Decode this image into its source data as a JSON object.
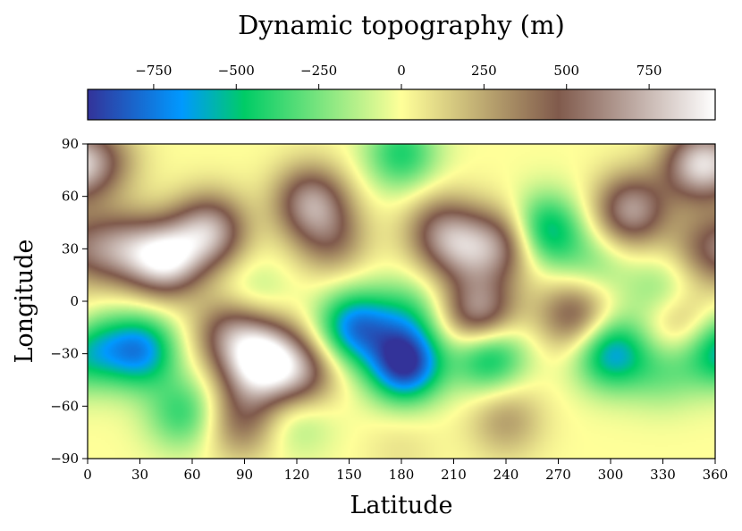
{
  "chart_data": {
    "type": "heatmap",
    "title": "",
    "xlabel": "Latitude",
    "ylabel": "Longitude",
    "xlim": [
      0,
      360
    ],
    "ylim": [
      -90,
      90
    ],
    "x_ticks": [
      "0",
      "30",
      "60",
      "90",
      "120",
      "150",
      "180",
      "210",
      "240",
      "270",
      "300",
      "330",
      "360"
    ],
    "y_ticks": [
      "90",
      "60",
      "30",
      "0",
      "−30",
      "−60",
      "−90"
    ],
    "colorbar": {
      "label": "Dynamic topography (m)",
      "orientation": "horizontal",
      "position": "top",
      "range": [
        -950,
        950
      ],
      "ticks": [
        "−750",
        "−500",
        "−250",
        "0",
        "250",
        "500",
        "750"
      ],
      "colormap_stops": [
        {
          "value": -950,
          "color": "#333399"
        },
        {
          "value": -665,
          "color": "#0099ff"
        },
        {
          "value": -475,
          "color": "#00cc66"
        },
        {
          "value": 0,
          "color": "#ffff99"
        },
        {
          "value": 475,
          "color": "#805a4c"
        },
        {
          "value": 950,
          "color": "#ffffff"
        }
      ]
    },
    "field_features": [
      {
        "lon": 180,
        "lat": 84,
        "value": -420,
        "note": "low band near north pole"
      },
      {
        "lon": 180,
        "lat": -84,
        "value": 80,
        "note": "pale band near south pole"
      },
      {
        "lon": 45,
        "lat": 24,
        "value": 850
      },
      {
        "lon": 70,
        "lat": 40,
        "value": 700
      },
      {
        "lon": 20,
        "lat": 30,
        "value": 500
      },
      {
        "lon": 128,
        "lat": 57,
        "value": 620
      },
      {
        "lon": 140,
        "lat": 35,
        "value": 350
      },
      {
        "lon": 225,
        "lat": -8,
        "value": 720
      },
      {
        "lon": 218,
        "lat": 28,
        "value": 430
      },
      {
        "lon": 203,
        "lat": 40,
        "value": 480
      },
      {
        "lon": 240,
        "lat": 33,
        "value": 500
      },
      {
        "lon": 312,
        "lat": 52,
        "value": 660
      },
      {
        "lon": 350,
        "lat": 78,
        "value": 720
      },
      {
        "lon": 10,
        "lat": 80,
        "value": 300
      },
      {
        "lon": 355,
        "lat": 30,
        "value": 380
      },
      {
        "lon": 280,
        "lat": -8,
        "value": 520
      },
      {
        "lon": 82,
        "lat": -18,
        "value": 520
      },
      {
        "lon": 103,
        "lat": -28,
        "value": 520
      },
      {
        "lon": 122,
        "lat": -42,
        "value": 560
      },
      {
        "lon": 96,
        "lat": -42,
        "value": 500
      },
      {
        "lon": 88,
        "lat": -70,
        "value": 380
      },
      {
        "lon": 240,
        "lat": -68,
        "value": 280
      },
      {
        "lon": 340,
        "lat": -12,
        "value": 340
      },
      {
        "lon": 182,
        "lat": -36,
        "value": -950
      },
      {
        "lon": 153,
        "lat": -15,
        "value": -700
      },
      {
        "lon": 30,
        "lat": -28,
        "value": -680
      },
      {
        "lon": 230,
        "lat": -30,
        "value": -600
      },
      {
        "lon": 300,
        "lat": -29,
        "value": -640
      },
      {
        "lon": 262,
        "lat": 40,
        "value": -600
      },
      {
        "lon": 0,
        "lat": -28,
        "value": -500
      },
      {
        "lon": 55,
        "lat": -64,
        "value": -380
      },
      {
        "lon": 183,
        "lat": -8,
        "value": -320
      },
      {
        "lon": 330,
        "lat": 5,
        "value": -260
      },
      {
        "lon": 290,
        "lat": 20,
        "value": -220
      },
      {
        "lon": 95,
        "lat": 2,
        "value": -180
      },
      {
        "lon": 120,
        "lat": -66,
        "value": -220
      },
      {
        "lon": 330,
        "lat": -40,
        "value": -240
      }
    ]
  }
}
